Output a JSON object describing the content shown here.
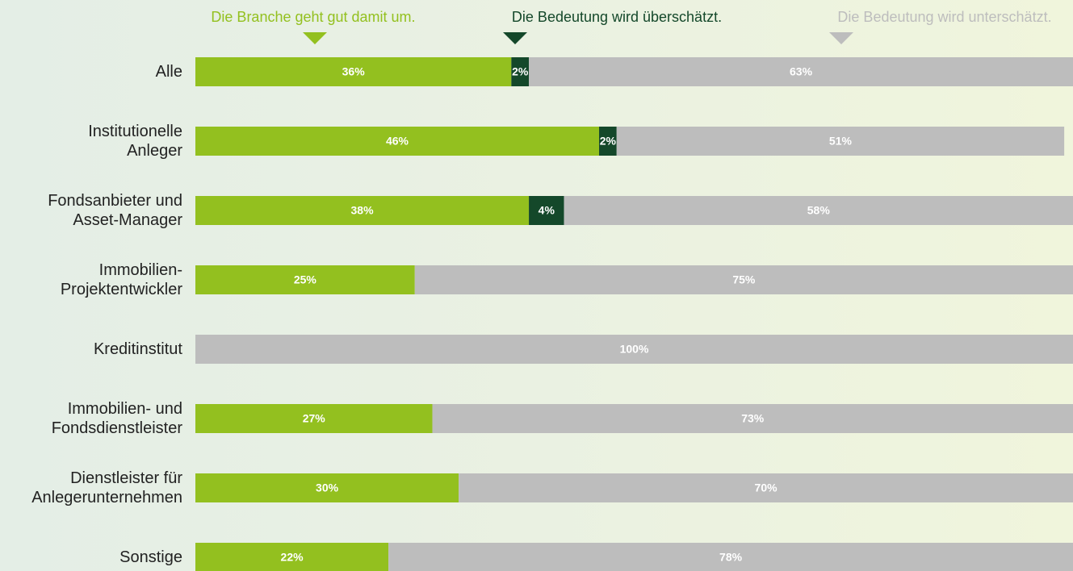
{
  "chart_data": {
    "type": "stacked-bar-horizontal",
    "categories": [
      "Alle",
      "Institutionelle\nAnleger",
      "Fondsanbieter und\nAsset-Manager",
      "Immobilien-\nProjektentwickler",
      "Kreditinstitut",
      "Immobilien- und\nFondsdienstleister",
      "Dienstleister für\nAnlegerunternehmen",
      "Sonstige"
    ],
    "series": [
      {
        "name": "Die Branche geht gut damit um.",
        "color": "#93c01f",
        "values": [
          36,
          46,
          38,
          25,
          null,
          27,
          30,
          22
        ]
      },
      {
        "name": "Die Bedeutung wird überschätzt.",
        "color": "#14482a",
        "values": [
          2,
          2,
          4,
          null,
          null,
          null,
          null,
          null
        ]
      },
      {
        "name": "Die Bedeutung wird unterschätzt.",
        "color": "#bdbdbd",
        "values": [
          63,
          51,
          58,
          75,
          100,
          73,
          70,
          78
        ]
      }
    ],
    "value_labels": [
      [
        "36%",
        "46%",
        "38%",
        "25%",
        null,
        "27%",
        "30%",
        "22%"
      ],
      [
        "2%",
        "2%",
        "4%",
        null,
        null,
        null,
        null,
        null
      ],
      [
        "63%",
        "51%",
        "58%",
        "75%",
        "100%",
        "73%",
        "70%",
        "78%"
      ]
    ],
    "xlim": [
      0,
      100
    ]
  }
}
